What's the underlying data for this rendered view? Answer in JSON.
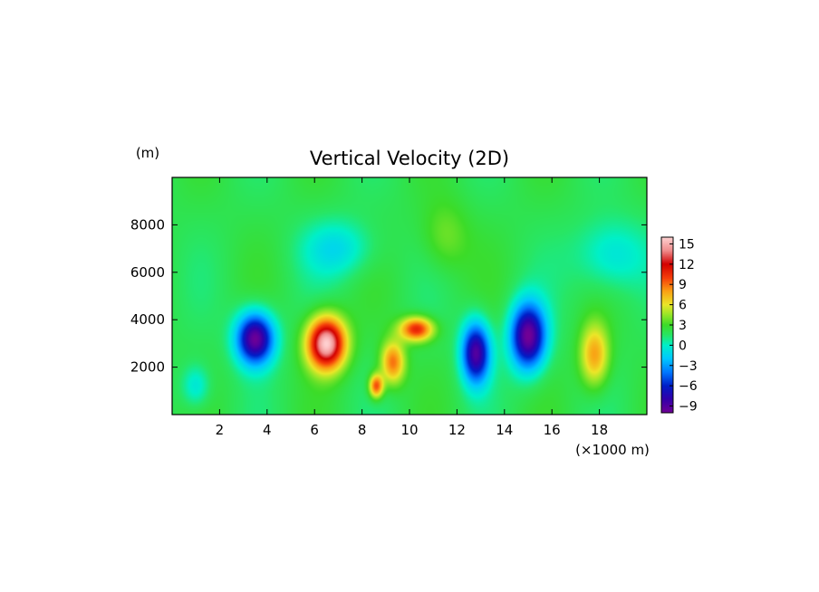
{
  "chart_data": {
    "type": "heatmap",
    "title": "Vertical Velocity (2D)",
    "xlabel": "(×1000 m)",
    "ylabel": "(m)",
    "x_ticks": [
      "2",
      "4",
      "6",
      "8",
      "10",
      "12",
      "14",
      "16",
      "18"
    ],
    "x_tick_values": [
      2,
      4,
      6,
      8,
      10,
      12,
      14,
      16,
      18
    ],
    "y_ticks": [
      "2000",
      "4000",
      "6000",
      "8000"
    ],
    "y_tick_values": [
      2000,
      4000,
      6000,
      8000
    ],
    "xlim": [
      0,
      20
    ],
    "ylim": [
      0,
      10000
    ],
    "colorbar": {
      "ticks": [
        "15",
        "12",
        "9",
        "6",
        "3",
        "0",
        "−3",
        "−6",
        "−9"
      ],
      "values": [
        15,
        12,
        9,
        6,
        3,
        0,
        -3,
        -6,
        -9
      ],
      "range": [
        -10,
        16
      ]
    },
    "background_value": 2,
    "features": [
      {
        "kind": "updraft",
        "x": 6.5,
        "y": 3000,
        "w": 14,
        "sx": 0.8,
        "sy": 1100
      },
      {
        "kind": "updraft",
        "x": 10.3,
        "y": 3600,
        "w": 9,
        "sx": 0.7,
        "sy": 500
      },
      {
        "kind": "updraft",
        "x": 9.3,
        "y": 2200,
        "w": 7,
        "sx": 0.5,
        "sy": 900
      },
      {
        "kind": "updraft",
        "x": 8.6,
        "y": 1200,
        "w": 8,
        "sx": 0.3,
        "sy": 500
      },
      {
        "kind": "updraft",
        "x": 17.8,
        "y": 2500,
        "w": 6,
        "sx": 0.6,
        "sy": 1300
      },
      {
        "kind": "downdraft",
        "x": 3.5,
        "y": 3200,
        "w": -12,
        "sx": 0.8,
        "sy": 1100
      },
      {
        "kind": "downdraft",
        "x": 12.8,
        "y": 2600,
        "w": -11,
        "sx": 0.6,
        "sy": 1300
      },
      {
        "kind": "downdraft",
        "x": 15,
        "y": 3300,
        "w": -12,
        "sx": 0.75,
        "sy": 1400
      },
      {
        "kind": "weak-downdraft",
        "x": 7,
        "y": 7000,
        "w": -3,
        "sx": 1.5,
        "sy": 1200
      },
      {
        "kind": "weak-downdraft",
        "x": 18.5,
        "y": 6700,
        "w": -3,
        "sx": 1.5,
        "sy": 1500
      },
      {
        "kind": "weak-downdraft",
        "x": 1,
        "y": 1200,
        "w": -3,
        "sx": 0.6,
        "sy": 900
      },
      {
        "kind": "weak-updraft",
        "x": 11.5,
        "y": 7500,
        "w": 2,
        "sx": 1,
        "sy": 1500
      }
    ]
  }
}
